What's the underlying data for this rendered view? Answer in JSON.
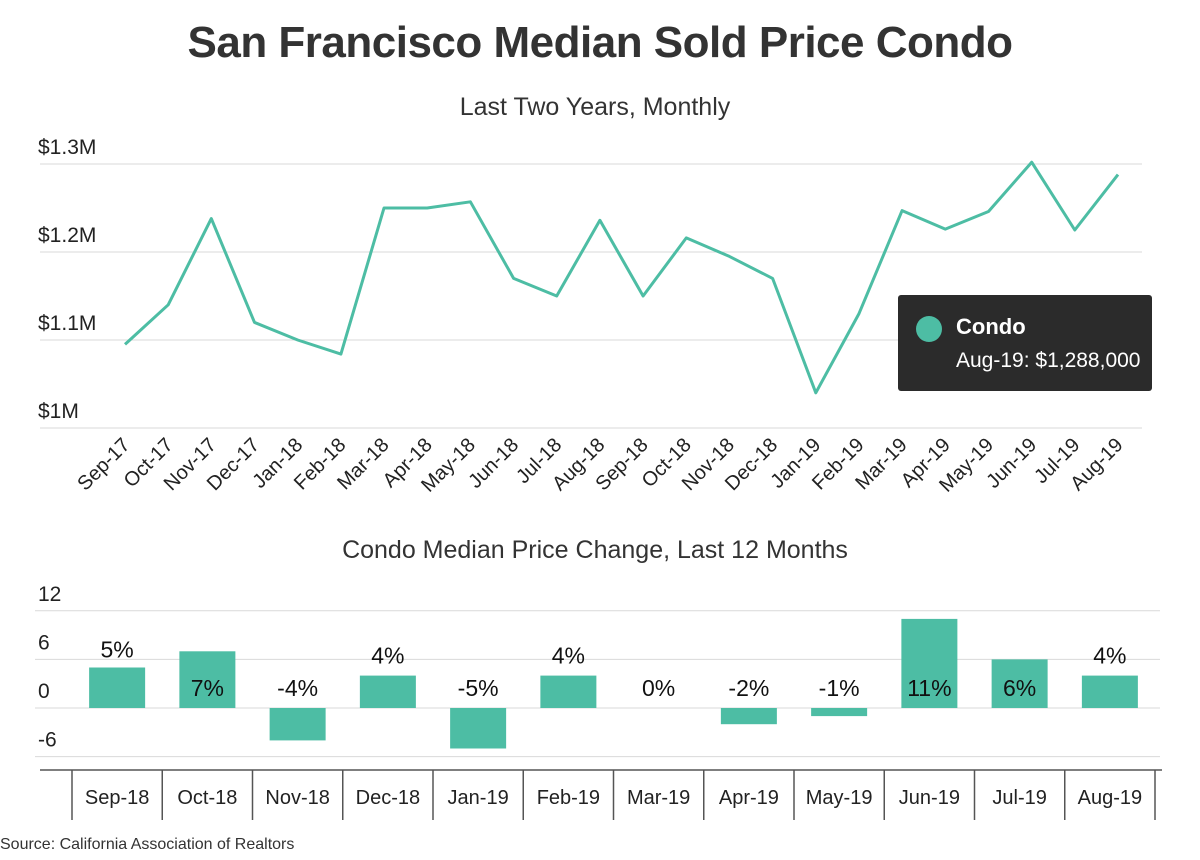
{
  "title": "San Francisco Median Sold Price Condo",
  "subtitle": "Last Two Years, Monthly",
  "source": "Source:  California Association of Realtors",
  "colors": {
    "series": "#4dbda4",
    "grid": "#d9d9d9",
    "tooltip_bg": "#2b2b2b"
  },
  "tooltip": {
    "series_name": "Condo",
    "text": "Aug-19: $1,288,000"
  },
  "chart_data": [
    {
      "type": "line",
      "title": "San Francisco Median Sold Price Condo",
      "subtitle": "Last Two Years, Monthly",
      "x": [
        "Sep-17",
        "Oct-17",
        "Nov-17",
        "Dec-17",
        "Jan-18",
        "Feb-18",
        "Mar-18",
        "Apr-18",
        "May-18",
        "Jun-18",
        "Jul-18",
        "Aug-18",
        "Sep-18",
        "Oct-18",
        "Nov-18",
        "Dec-18",
        "Jan-19",
        "Feb-19",
        "Mar-19",
        "Apr-19",
        "May-19",
        "Jun-19",
        "Jul-19",
        "Aug-19"
      ],
      "series": [
        {
          "name": "Condo",
          "values": [
            1095000,
            1140000,
            1238000,
            1120000,
            1100000,
            1084000,
            1250000,
            1250000,
            1257000,
            1170000,
            1150000,
            1236000,
            1150000,
            1216000,
            1195000,
            1170000,
            1040000,
            1130000,
            1247000,
            1226000,
            1246000,
            1302000,
            1225000,
            1288000
          ]
        }
      ],
      "y_ticks": [
        1000000,
        1100000,
        1200000,
        1300000
      ],
      "y_tick_labels": [
        "$1M",
        "$1.1M",
        "$1.2M",
        "$1.3M"
      ],
      "ylim": [
        1000000,
        1300000
      ],
      "grid": true
    },
    {
      "type": "bar",
      "title": "Condo Median Price Change, Last 12 Months",
      "categories": [
        "Sep-18",
        "Oct-18",
        "Nov-18",
        "Dec-18",
        "Jan-19",
        "Feb-19",
        "Mar-19",
        "Apr-19",
        "May-19",
        "Jun-19",
        "Jul-19",
        "Aug-19"
      ],
      "values": [
        5,
        7,
        -4,
        4,
        -5,
        4,
        0,
        -2,
        -1,
        11,
        6,
        4
      ],
      "data_labels": [
        "5%",
        "7%",
        "-4%",
        "4%",
        "-5%",
        "4%",
        "0%",
        "-2%",
        "-1%",
        "11%",
        "6%",
        "4%"
      ],
      "y_ticks": [
        -6,
        0,
        6,
        12
      ],
      "y_tick_labels": [
        "-6",
        "0",
        "6",
        "12"
      ],
      "ylim": [
        -6,
        12
      ],
      "grid": true
    }
  ]
}
